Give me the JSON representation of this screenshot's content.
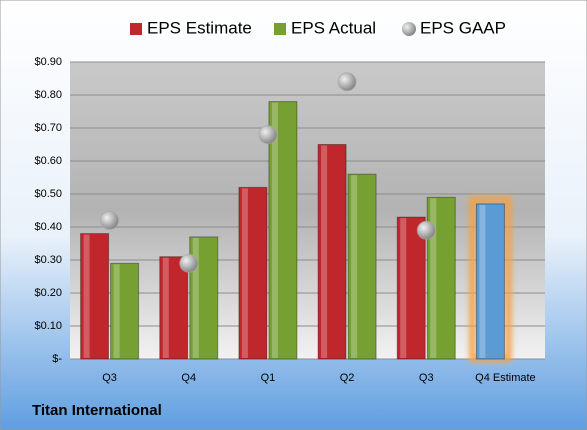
{
  "chart_data": {
    "type": "bar",
    "caption": "Titan International",
    "categories": [
      "Q3",
      "Q4",
      "Q1",
      "Q2",
      "Q3",
      "Q4 Estimate"
    ],
    "series": [
      {
        "name": "EPS Estimate",
        "color": "#c0272d",
        "colors": [
          "#c0272d",
          "#c0272d",
          "#c0272d",
          "#c0272d",
          "#c0272d",
          "#5b9bd5"
        ],
        "values": [
          0.38,
          0.31,
          0.52,
          0.65,
          0.43,
          0.47
        ]
      },
      {
        "name": "EPS Actual",
        "color": "#77a033",
        "values": [
          0.29,
          0.37,
          0.78,
          0.56,
          0.49,
          null
        ]
      },
      {
        "name": "EPS GAAP",
        "color": "#a6a6a6",
        "marker": "circle",
        "values": [
          0.42,
          0.29,
          0.68,
          0.84,
          0.39,
          null
        ]
      }
    ],
    "ylim": [
      0,
      0.9
    ],
    "yticks": [
      {
        "value": 0,
        "label": "$-"
      },
      {
        "value": 0.1,
        "label": "$0.10"
      },
      {
        "value": 0.2,
        "label": "$0.20"
      },
      {
        "value": 0.3,
        "label": "$0.30"
      },
      {
        "value": 0.4,
        "label": "$0.40"
      },
      {
        "value": 0.5,
        "label": "$0.50"
      },
      {
        "value": 0.6,
        "label": "$0.60"
      },
      {
        "value": 0.7,
        "label": "$0.70"
      },
      {
        "value": 0.8,
        "label": "$0.80"
      },
      {
        "value": 0.9,
        "label": "$0.90"
      }
    ],
    "grid": true
  }
}
